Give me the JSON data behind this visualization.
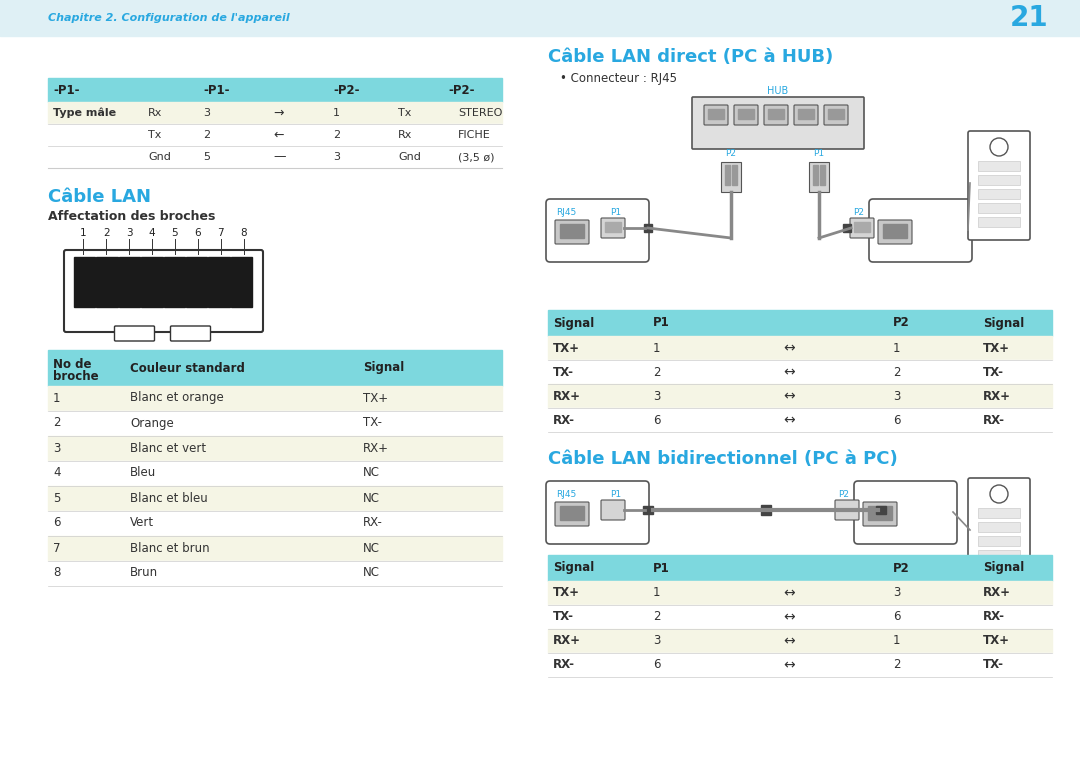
{
  "bg_color": "#dff0f5",
  "page_bg": "#ffffff",
  "header_text": "Chapitre 2. Configuration de l'appareil",
  "header_color": "#29a8e0",
  "page_number": "21",
  "cyan_hdr": "#7dd8de",
  "alt_row": "#f5f5e5",
  "blue": "#29a8e0",
  "top_table": {
    "headers": [
      "-P1-",
      "-P1-",
      "-P2-",
      "-P2-"
    ],
    "row_label": "Type mâle",
    "rows": [
      [
        "Rx",
        "3",
        "→",
        "1",
        "Tx",
        "STEREO"
      ],
      [
        "Tx",
        "2",
        "←",
        "2",
        "Rx",
        "FICHE"
      ],
      [
        "Gnd",
        "5",
        "—",
        "3",
        "Gnd",
        "(3,5 ø)"
      ]
    ]
  },
  "cable_lan_title": "Câble LAN",
  "cable_lan_subtitle": "Affectation des broches",
  "pin_table_rows": [
    [
      "1",
      "Blanc et orange",
      "TX+"
    ],
    [
      "2",
      "Orange",
      "TX-"
    ],
    [
      "3",
      "Blanc et vert",
      "RX+"
    ],
    [
      "4",
      "Bleu",
      "NC"
    ],
    [
      "5",
      "Blanc et bleu",
      "NC"
    ],
    [
      "6",
      "Vert",
      "RX-"
    ],
    [
      "7",
      "Blanc et brun",
      "NC"
    ],
    [
      "8",
      "Brun",
      "NC"
    ]
  ],
  "direct_title": "Câble LAN direct (PC à HUB)",
  "direct_connector": "Connecteur : RJ45",
  "direct_table_rows": [
    [
      "TX+",
      "1",
      "↔",
      "1",
      "TX+"
    ],
    [
      "TX-",
      "2",
      "↔",
      "2",
      "TX-"
    ],
    [
      "RX+",
      "3",
      "↔",
      "3",
      "RX+"
    ],
    [
      "RX-",
      "6",
      "↔",
      "6",
      "RX-"
    ]
  ],
  "bidir_title": "Câble LAN bidirectionnel (PC à PC)",
  "bidir_table_rows": [
    [
      "TX+",
      "1",
      "↔",
      "3",
      "RX+"
    ],
    [
      "TX-",
      "2",
      "↔",
      "6",
      "RX-"
    ],
    [
      "RX+",
      "3",
      "↔",
      "1",
      "TX+"
    ],
    [
      "RX-",
      "6",
      "↔",
      "2",
      "TX-"
    ]
  ]
}
